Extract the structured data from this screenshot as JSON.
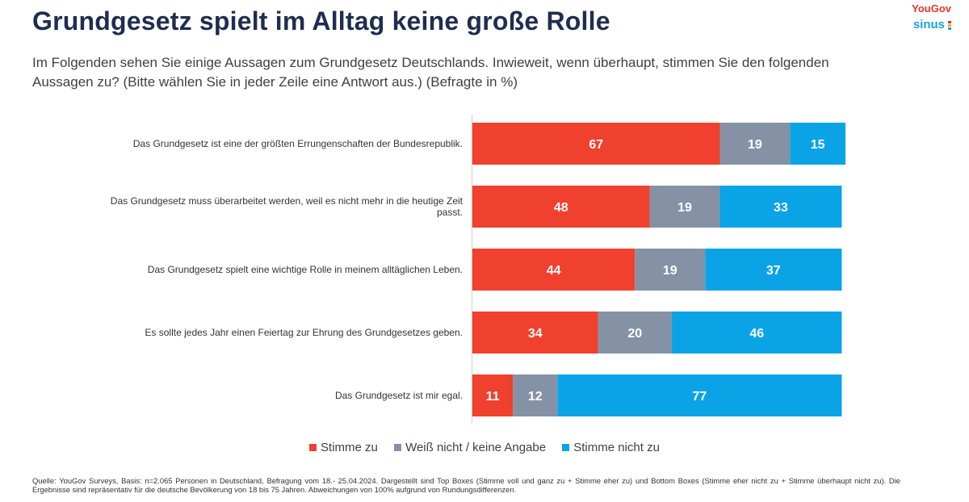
{
  "title": "Grundgesetz spielt im Alltag keine große Rolle",
  "subtitle": "Im Folgenden sehen Sie einige Aussagen zum Grundgesetz Deutschlands. Inwieweit, wenn überhaupt, stimmen Sie den folgenden Aussagen zu? (Bitte wählen Sie in jeder Zeile eine Antwort aus.) (Befragte in %)",
  "brand": {
    "yougov": "YouGov",
    "sinus": "sinus"
  },
  "footnote": "Quelle: YouGov Surveys, Basis: n=2.065 Personen in Deutschland, Befragung vom 18.- 25.04.2024. Dargestellt sind Top Boxes (Stimme voll und ganz zu + Stimme eher zu) und Bottom Boxes (Stimme eher nicht zu + Stimme überhaupt nicht zu). Die Ergebnisse sind repräsentativ für die deutsche Bevölkerung von 18 bis 75 Jahren. Abweichungen von 100% aufgrund von Rundungsdifferenzen.",
  "colors": {
    "agree": "#f0412f",
    "neutral": "#8592a6",
    "disagree": "#0aa4e6",
    "text": "#1f2d4f"
  },
  "chart_data": {
    "type": "bar",
    "orientation": "horizontal",
    "stacked": true,
    "categories": [
      "Das Grundgesetz ist eine der größten Errungenschaften der Bundesrepublik.",
      "Das Grundgesetz muss überarbeitet werden, weil es nicht mehr in die heutige Zeit passt.",
      "Das Grundgesetz spielt eine wichtige Rolle in meinem alltäglichen Leben.",
      "Es sollte jedes Jahr einen Feiertag zur Ehrung des Grundgesetzes geben.",
      "Das Grundgesetz ist mir egal."
    ],
    "series": [
      {
        "name": "Stimme zu",
        "color": "#f0412f",
        "values": [
          67,
          48,
          44,
          34,
          11
        ]
      },
      {
        "name": "Weiß nicht / keine Angabe",
        "color": "#8592a6",
        "values": [
          19,
          19,
          19,
          20,
          12
        ]
      },
      {
        "name": "Stimme nicht zu",
        "color": "#0aa4e6",
        "values": [
          15,
          33,
          37,
          46,
          77
        ]
      }
    ],
    "xlim": [
      0,
      101
    ],
    "legend_position": "bottom-center"
  }
}
